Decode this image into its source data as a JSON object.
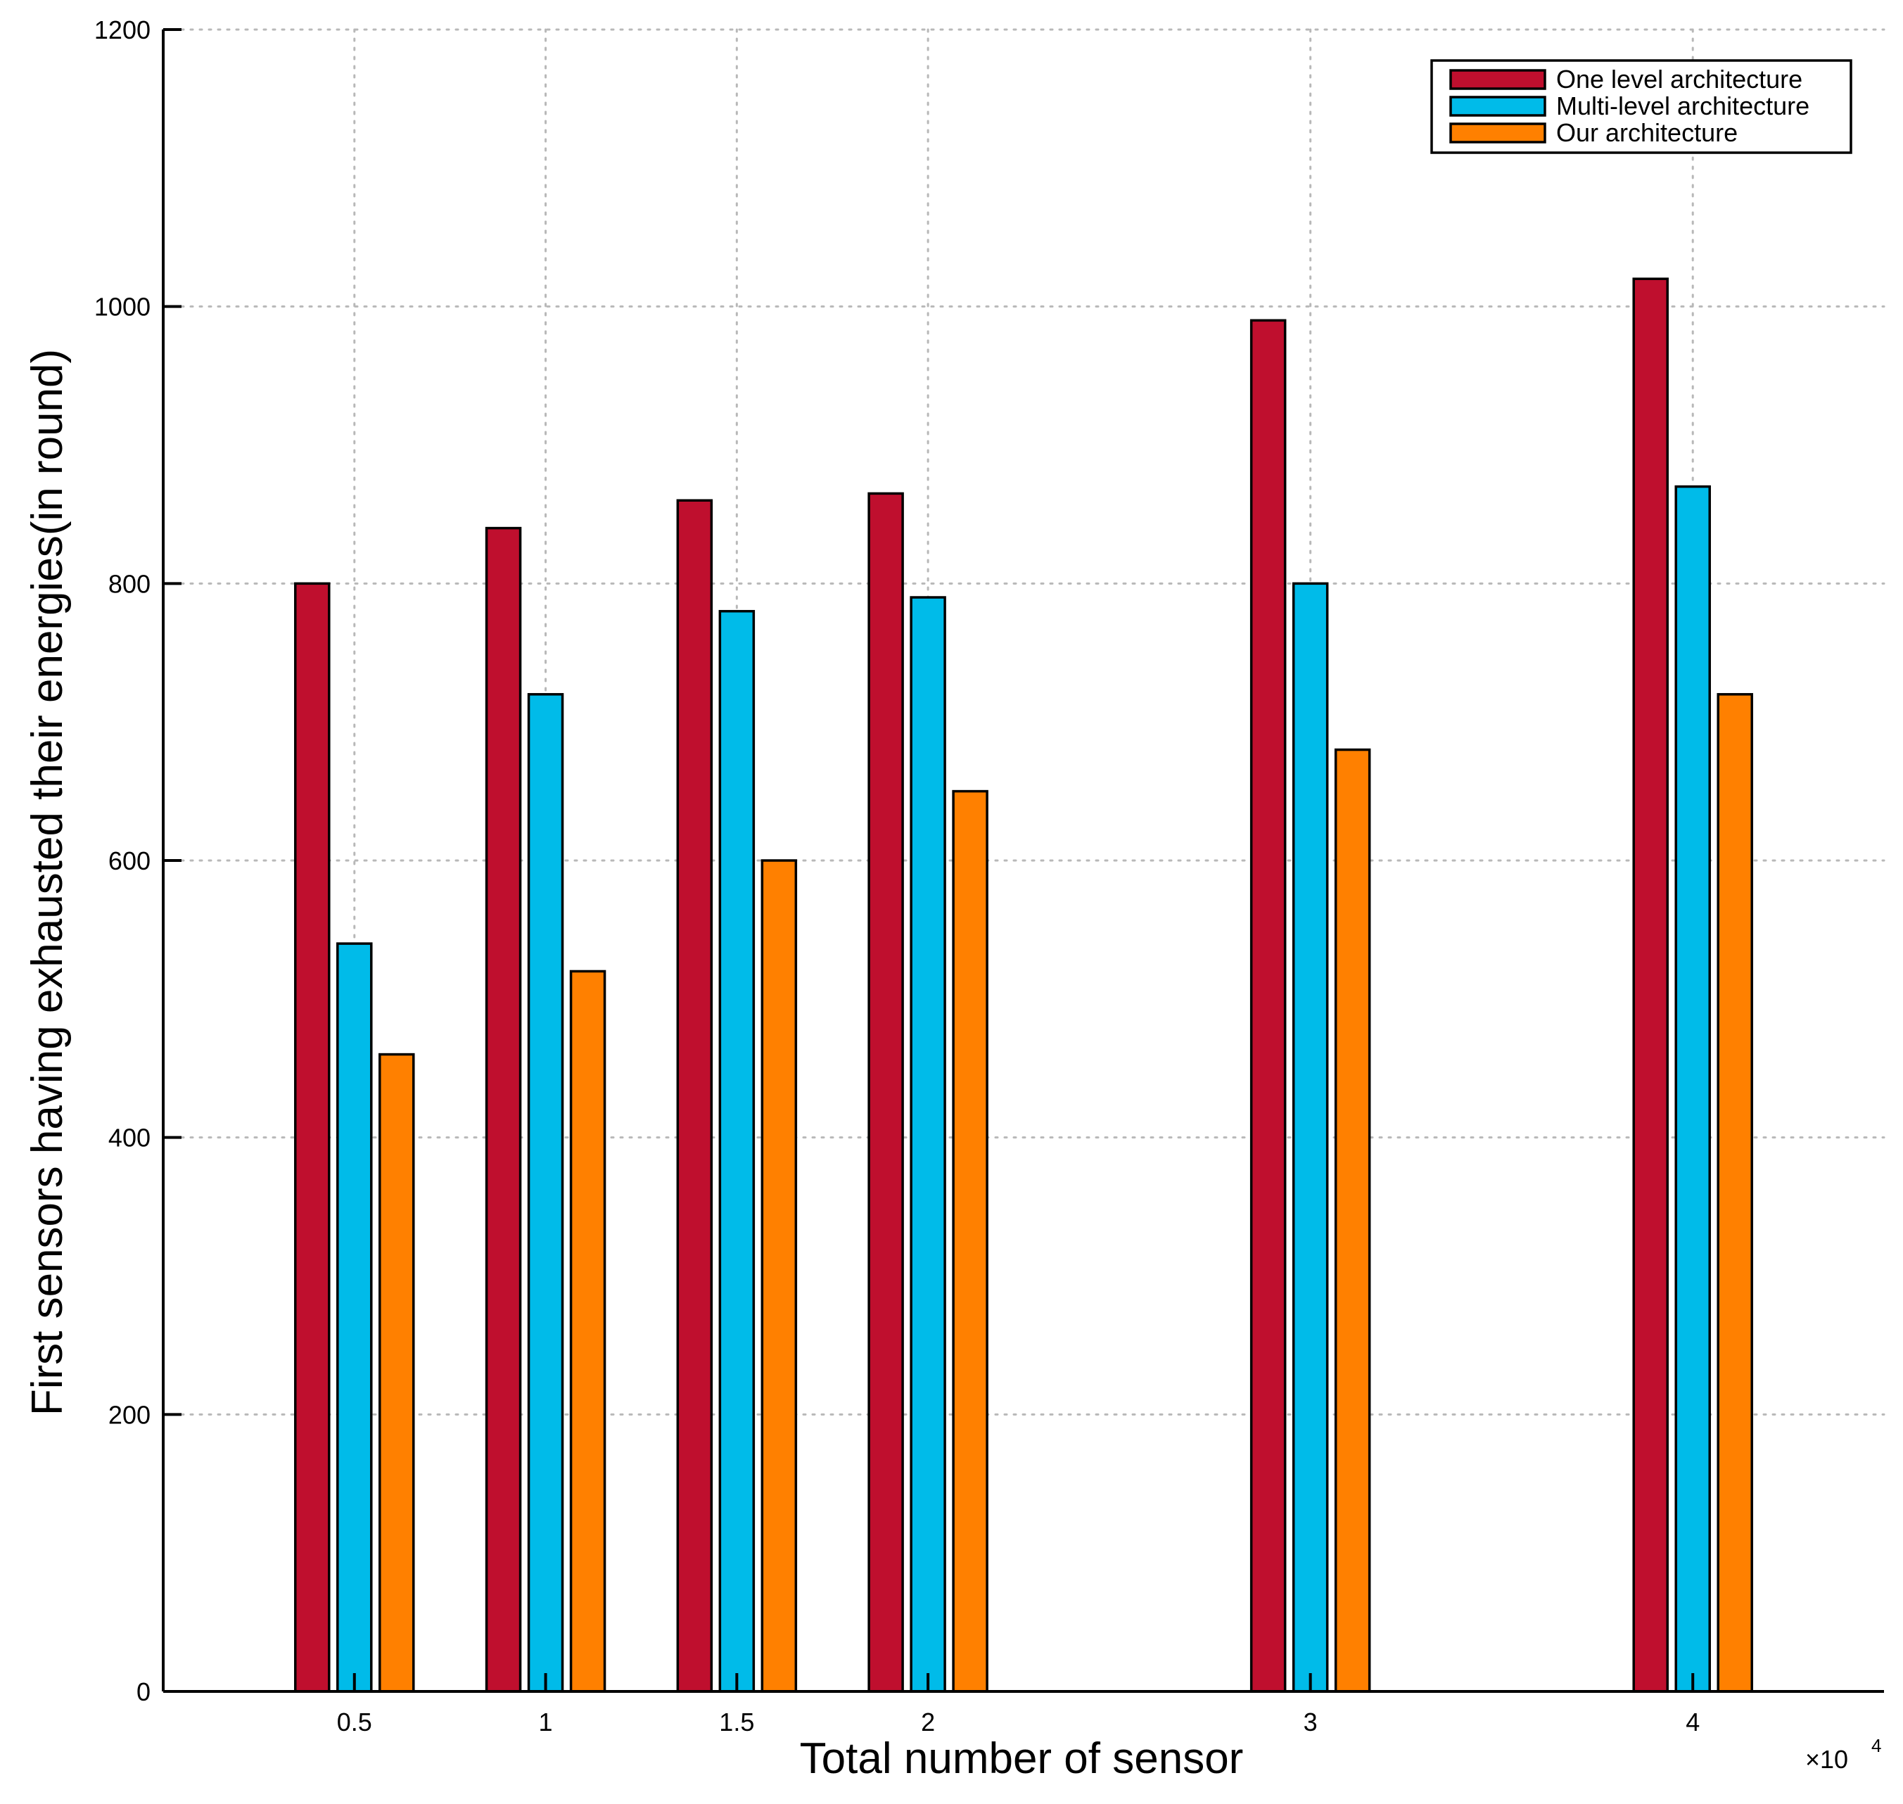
{
  "chart_data": {
    "type": "bar",
    "title": "",
    "xlabel": "Total number of sensor",
    "ylabel": "First sensors having exhausted their energies(in round)",
    "x_multiplier": {
      "base": "×10",
      "exponent": "4"
    },
    "x": [
      0.5,
      1,
      1.5,
      2,
      3,
      4
    ],
    "x_tick_labels": [
      "0.5",
      "1",
      "1.5",
      "2",
      "3",
      "4"
    ],
    "xlim": [
      0,
      4.5
    ],
    "ylim": [
      0,
      1200
    ],
    "y_ticks": [
      0,
      200,
      400,
      600,
      800,
      1000,
      1200
    ],
    "y_tick_labels": [
      "0",
      "200",
      "400",
      "600",
      "800",
      "1000",
      "1200"
    ],
    "grid": true,
    "legend_position": "top-right",
    "series": [
      {
        "name": "One level architecture",
        "color": "#bf0f2e",
        "values": [
          800,
          840,
          860,
          865,
          990,
          1020
        ]
      },
      {
        "name": "Multi-level architecture",
        "color": "#00bbe9",
        "values": [
          540,
          720,
          780,
          790,
          800,
          870
        ]
      },
      {
        "name": "Our architecture",
        "color": "#ff8000",
        "values": [
          460,
          520,
          600,
          650,
          680,
          720
        ]
      }
    ]
  }
}
